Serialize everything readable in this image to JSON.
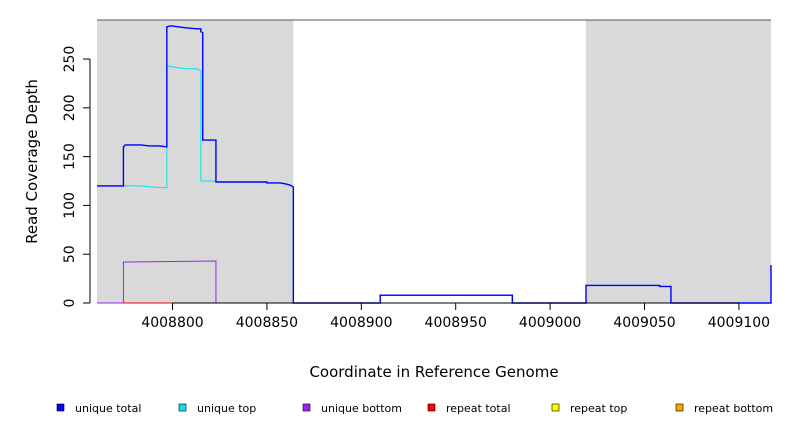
{
  "chart_data": {
    "type": "line",
    "xlabel": "Coordinate in Reference Genome",
    "ylabel": "Read Coverage Depth",
    "xlim": [
      4008760,
      4009117
    ],
    "ylim": [
      0,
      290
    ],
    "x_ticks": [
      4008800,
      4008850,
      4008900,
      4008950,
      4009000,
      4009050,
      4009100
    ],
    "x_tick_labels": [
      "4008800",
      "4008850",
      "4008900",
      "4008950",
      "4009000",
      "4009050",
      "4009100"
    ],
    "y_ticks": [
      0,
      50,
      100,
      150,
      200,
      250
    ],
    "y_tick_labels": [
      "0",
      "50",
      "100",
      "150",
      "200",
      "250"
    ],
    "shaded_regions": [
      {
        "x0": 4008760,
        "x1": 4008864,
        "color": "#d9d9d9"
      },
      {
        "x0": 4009019,
        "x1": 4009117,
        "color": "#d9d9d9"
      }
    ],
    "legend_position": "bottom",
    "series": [
      {
        "name": "unique total",
        "color": "#0000ff",
        "x": [
          4008760,
          4008774,
          4008774,
          4008775,
          4008783,
          4008788,
          4008793,
          4008797,
          4008797,
          4008799,
          4008803,
          4008807,
          4008813,
          4008815,
          4008815,
          4008816,
          4008816,
          4008823,
          4008823,
          4008850,
          4008850,
          4008857,
          4008860,
          4008862,
          4008864,
          4008864,
          4008910,
          4008910,
          4008980,
          4008980,
          4009019,
          4009019,
          4009058,
          4009058,
          4009064,
          4009064,
          4009117,
          4009117
        ],
        "y": [
          120,
          120,
          160,
          162,
          162,
          161,
          161,
          160,
          283,
          284,
          283,
          282,
          281,
          281,
          278,
          277,
          167,
          167,
          124,
          124,
          123,
          123,
          122,
          121,
          119,
          0,
          0,
          8,
          8,
          0,
          0,
          18,
          18,
          17,
          17,
          0,
          0,
          39
        ]
      },
      {
        "name": "unique top",
        "color": "#00e5ee",
        "x": [
          4008760,
          4008774,
          4008774,
          4008783,
          4008788,
          4008797,
          4008797,
          4008803,
          4008807,
          4008813,
          4008815,
          4008815,
          4008823,
          4008823,
          4008850,
          4008850,
          4008857,
          4008860,
          4008862,
          4008864,
          4008864,
          4008910,
          4008910,
          4008980,
          4008980,
          4009019,
          4009019,
          4009058,
          4009058,
          4009064,
          4009064,
          4009117,
          4009117
        ],
        "y": [
          120,
          120,
          120,
          120,
          119,
          118,
          243,
          241,
          240,
          240,
          238,
          125,
          125,
          124,
          124,
          123,
          123,
          122,
          121,
          119,
          0,
          0,
          0,
          0,
          0,
          0,
          18,
          18,
          17,
          17,
          0,
          0,
          39
        ]
      },
      {
        "name": "unique bottom",
        "color": "#a020f0",
        "x": [
          4008760,
          4008774,
          4008774,
          4008823,
          4008823,
          4008910,
          4008910,
          4008980,
          4008980,
          4009117
        ],
        "y": [
          0,
          0,
          42,
          43,
          0,
          0,
          8,
          8,
          0,
          0
        ]
      },
      {
        "name": "repeat total",
        "color": "#ff0000",
        "x": [
          4008760,
          4009117
        ],
        "y": [
          0,
          0
        ]
      },
      {
        "name": "repeat top",
        "color": "#ffff00",
        "x": [
          4008760,
          4009117
        ],
        "y": [
          0,
          0
        ]
      },
      {
        "name": "repeat bottom",
        "color": "#ffa500",
        "x": [
          4008774,
          4008823
        ],
        "y": [
          0,
          0
        ]
      }
    ]
  }
}
